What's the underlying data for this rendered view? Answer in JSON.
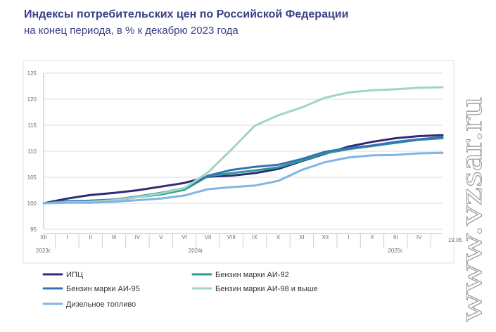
{
  "title": "Индексы потребительских цен по Российской Федерации",
  "subtitle": "на конец периода, в % к декабрю 2023 года",
  "watermark_text": "www.vzsar.ru",
  "chart_data": {
    "type": "line",
    "title": "Индексы потребительских цен по Российской Федерации",
    "subtitle": "на конец периода, в % к декабрю 2023 года",
    "ylim": [
      95,
      125
    ],
    "yticks": [
      95,
      100,
      105,
      110,
      115,
      120,
      125
    ],
    "grid": true,
    "categories": [
      "XII",
      "I",
      "II",
      "III",
      "IV",
      "V",
      "VI",
      "VII",
      "VIII",
      "IX",
      "X",
      "XI",
      "XII",
      "I",
      "II",
      "III",
      "IV",
      "19.05"
    ],
    "year_labels": [
      {
        "label": "2023г.",
        "from": 0,
        "to": 0
      },
      {
        "label": "2024г.",
        "from": 1,
        "to": 12
      },
      {
        "label": "2025г.",
        "from": 13,
        "to": 17
      }
    ],
    "legend_position": "bottom",
    "series": [
      {
        "name": "ИПЦ",
        "color": "#2e2b77",
        "values": [
          100.0,
          100.9,
          101.6,
          102.0,
          102.5,
          103.2,
          103.9,
          105.1,
          105.3,
          105.8,
          106.6,
          108.1,
          109.5,
          110.9,
          111.8,
          112.5,
          112.9,
          113.1
        ]
      },
      {
        "name": "Бензин марки АИ-92",
        "color": "#2a9c92",
        "values": [
          100.0,
          100.2,
          100.3,
          100.5,
          101.2,
          101.7,
          102.6,
          105.2,
          105.8,
          106.3,
          106.9,
          108.2,
          109.6,
          110.4,
          111.0,
          111.6,
          112.2,
          112.5
        ]
      },
      {
        "name": "Бензин марки АИ-95",
        "color": "#3672b5",
        "values": [
          100.0,
          100.4,
          100.5,
          100.7,
          101.3,
          102.0,
          102.9,
          105.3,
          106.4,
          107.0,
          107.4,
          108.5,
          109.9,
          110.6,
          111.1,
          111.8,
          112.3,
          112.7
        ]
      },
      {
        "name": "Бензин марки АИ-98 и выше",
        "color": "#9fd8b8",
        "values": [
          100.0,
          100.2,
          100.3,
          100.6,
          101.2,
          101.9,
          102.9,
          105.9,
          110.3,
          114.9,
          116.9,
          118.4,
          120.3,
          121.3,
          121.7,
          121.9,
          122.2,
          122.3
        ]
      },
      {
        "name": "Дизельное топливо",
        "color": "#7fb6e3",
        "values": [
          100.0,
          100.1,
          100.1,
          100.3,
          100.6,
          100.9,
          101.5,
          102.7,
          103.1,
          103.4,
          104.3,
          106.4,
          107.9,
          108.8,
          109.2,
          109.3,
          109.6,
          109.7
        ]
      }
    ]
  }
}
